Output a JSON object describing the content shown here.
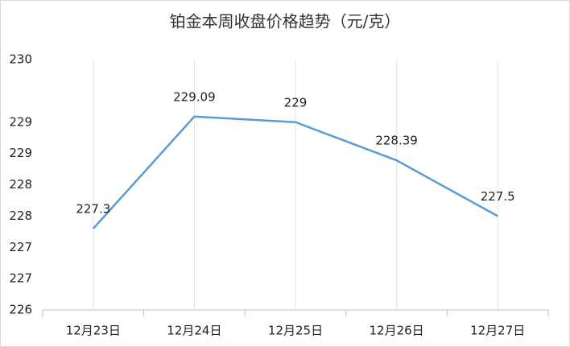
{
  "chart_data": {
    "type": "line",
    "title": "铂金本周收盘价格趋势（元/克）",
    "categories": [
      "12月23日",
      "12月24日",
      "12月25日",
      "12月26日",
      "12月27日"
    ],
    "values": [
      227.3,
      229.09,
      229,
      228.39,
      227.5
    ],
    "color": "#5b9bd5",
    "ylim": [
      226,
      230
    ],
    "yticks": [
      226,
      {
        "value": 226.5,
        "label": "227"
      },
      227,
      {
        "value": 227.5,
        "label": "228"
      },
      228,
      {
        "value": 228.5,
        "label": "229"
      },
      229,
      230
    ],
    "grid": false
  }
}
